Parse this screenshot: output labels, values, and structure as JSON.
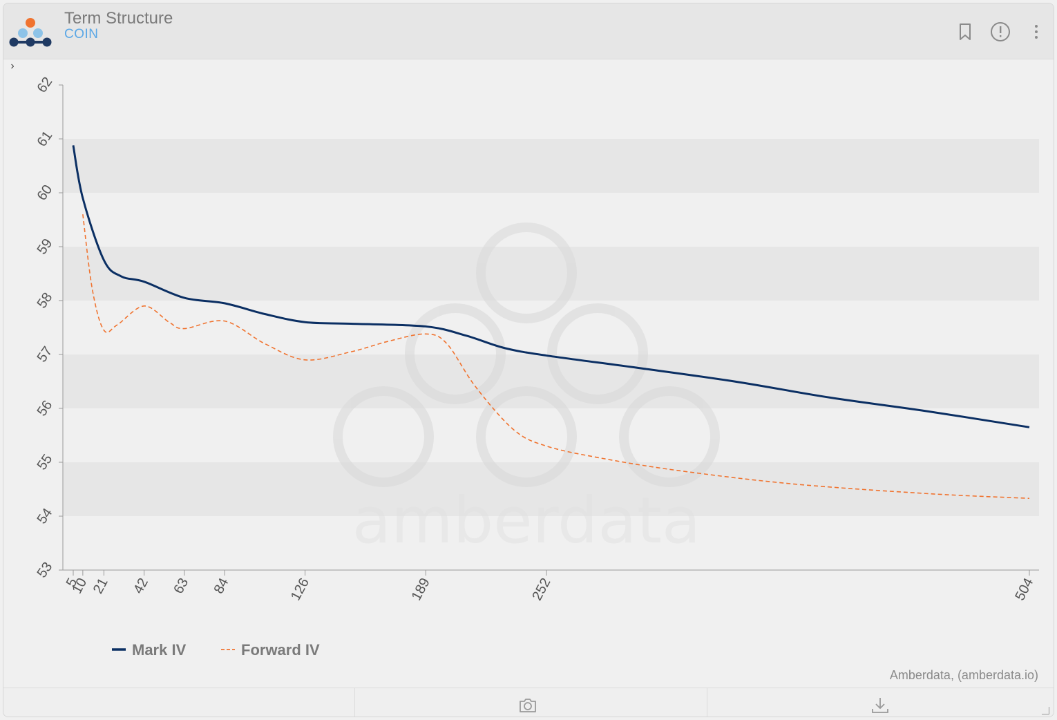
{
  "header": {
    "title": "Term Structure",
    "subtitle": "COIN",
    "icons": [
      "bookmark-icon",
      "info-icon",
      "more-vertical-icon"
    ]
  },
  "expander_label": "›",
  "credit": "Amberdata, (amberdata.io)",
  "watermark_text": "amberdata",
  "footer": {
    "icons": [
      "camera-icon",
      "download-icon"
    ]
  },
  "colors": {
    "mark_iv": "#0b2f63",
    "forward_iv": "#f0732f",
    "brand_orange": "#f0732f",
    "brand_blue": "#1f3a63",
    "brand_light_blue": "#8dc3e8"
  },
  "chart_data": {
    "type": "line",
    "title": "",
    "xlabel": "",
    "ylabel": "",
    "x_ticks": [
      5,
      10,
      21,
      42,
      63,
      84,
      126,
      189,
      252,
      504
    ],
    "y_ticks": [
      53,
      54,
      55,
      56,
      57,
      58,
      59,
      60,
      61,
      62
    ],
    "ylim": [
      53,
      62
    ],
    "xlim": [
      0,
      504
    ],
    "grid": "alternating horizontal bands",
    "legend_position": "bottom-left",
    "series": [
      {
        "name": "Mark IV",
        "style": "solid",
        "x": [
          5,
          10,
          21,
          30,
          42,
          63,
          84,
          105,
          126,
          150,
          189,
          210,
          230,
          252,
          300,
          350,
          400,
          450,
          504
        ],
        "y": [
          60.88,
          59.9,
          58.75,
          58.45,
          58.35,
          58.05,
          57.95,
          57.75,
          57.6,
          57.57,
          57.52,
          57.35,
          57.12,
          56.98,
          56.75,
          56.5,
          56.2,
          55.95,
          55.65
        ]
      },
      {
        "name": "Forward IV",
        "style": "dashed",
        "x": [
          10,
          15,
          21,
          28,
          42,
          55,
          63,
          84,
          105,
          126,
          150,
          170,
          189,
          200,
          215,
          235,
          252,
          280,
          320,
          380,
          450,
          504
        ],
        "y": [
          59.6,
          58.2,
          57.45,
          57.55,
          57.9,
          57.6,
          57.48,
          57.62,
          57.2,
          56.9,
          57.05,
          57.25,
          57.38,
          57.2,
          56.4,
          55.6,
          55.3,
          55.08,
          54.85,
          54.6,
          54.42,
          54.33
        ]
      }
    ]
  }
}
